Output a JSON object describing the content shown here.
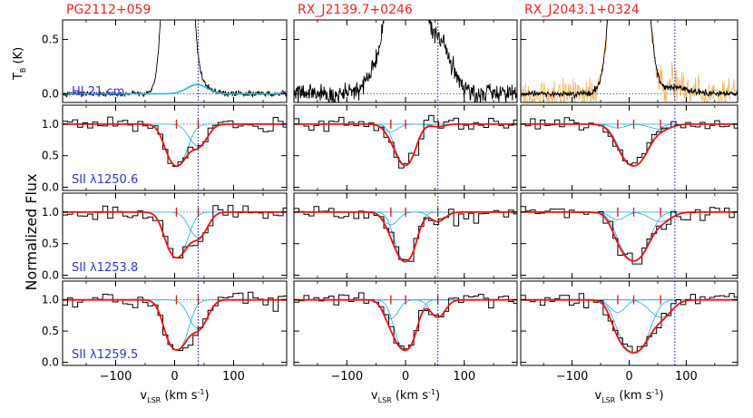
{
  "chart_data": {
    "type": "line",
    "title": "",
    "xlabel_main": "v",
    "xlabel_sub": "LSR",
    "xlabel_units_pre": "(km s",
    "xlabel_units_sup": "-1",
    "xlabel_units_post": ")",
    "ylabel_flux": "Normalized Flux",
    "ylabel_tb_main": "T",
    "ylabel_tb_sub": "B",
    "ylabel_tb_units": "(K)",
    "xlim": [
      -190,
      190
    ],
    "xticks": [
      -100,
      0,
      100
    ],
    "xtick_labels": [
      "−100",
      "0",
      "100"
    ],
    "hi_yticks": [
      0.0,
      0.5
    ],
    "hi_ytick_labels": [
      "0.0",
      "0.5"
    ],
    "hi_ylim": [
      -0.08,
      0.68
    ],
    "flux_yticks": [
      0.0,
      0.5,
      1.0
    ],
    "flux_ytick_labels": [
      "0.0",
      "0.5",
      "1.0"
    ],
    "flux_ylim": [
      -0.05,
      1.3
    ],
    "colors": {
      "data": "#000000",
      "total_model": "#ee1111",
      "component_model": "#22a8e0",
      "hi_model": "#22b5e8",
      "tick_marks": "#dd2222",
      "vline": "#2222bb",
      "panel_label": "#3333cc",
      "title": "#ee2222",
      "gbt_overlay": "#f0b460"
    },
    "rows": [
      {
        "label": "HI 21 cm"
      },
      {
        "label": "SII λ1250.6"
      },
      {
        "label": "SII λ1253.8"
      },
      {
        "label": "SII λ1259.5"
      }
    ],
    "sightlines": [
      {
        "name": "PG2112+059",
        "vline": 40,
        "hi": {
          "peaks": [
            {
              "v": 5,
              "amp": 6.0,
              "sigma": 14
            },
            {
              "v": 38,
              "amp": 0.09,
              "sigma": 18
            }
          ],
          "noise": 0.012,
          "model_amp": 0.085,
          "model_v": 38,
          "model_sigma": 17
        },
        "components": [
          {
            "v": 3,
            "depth": [
              0.66,
              0.72,
              0.8
            ],
            "sigma": 15
          },
          {
            "v": 40,
            "depth": [
              0.35,
              0.4,
              0.46
            ],
            "sigma": 14
          }
        ],
        "marks": [
          3,
          40
        ]
      },
      {
        "name": "RX_J2139.7+0246",
        "vline": 55,
        "hi": {
          "peaks": [
            {
              "v": 0,
              "amp": 5.0,
              "sigma": 17
            },
            {
              "v": 55,
              "amp": 0.5,
              "sigma": 22
            },
            {
              "v": -45,
              "amp": 0.25,
              "sigma": 18
            }
          ],
          "noise": 0.045
        },
        "components": [
          {
            "v": -25,
            "depth": [
              0.12,
              0.2,
              0.3
            ],
            "sigma": 12
          },
          {
            "v": 0,
            "depth": [
              0.65,
              0.78,
              0.8
            ],
            "sigma": 14
          },
          {
            "v": 55,
            "depth": [
              0.04,
              0.15,
              0.28
            ],
            "sigma": 12
          }
        ],
        "marks": [
          -25,
          0,
          55
        ]
      },
      {
        "name": "RX_J2043.1+0324",
        "vline": 80,
        "hi": {
          "peaks": [
            {
              "v": 0,
              "amp": 5.0,
              "sigma": 19
            },
            {
              "v": 80,
              "amp": 0.06,
              "sigma": 25
            }
          ],
          "noise": 0.014,
          "overlay_noise": 0.07
        },
        "components": [
          {
            "v": -20,
            "depth": [
              0.06,
              0.12,
              0.2
            ],
            "sigma": 13
          },
          {
            "v": 8,
            "depth": [
              0.66,
              0.77,
              0.84
            ],
            "sigma": 20
          },
          {
            "v": 55,
            "depth": [
              0.08,
              0.15,
              0.28
            ],
            "sigma": 18
          }
        ],
        "marks": [
          -20,
          8,
          55
        ]
      }
    ]
  }
}
